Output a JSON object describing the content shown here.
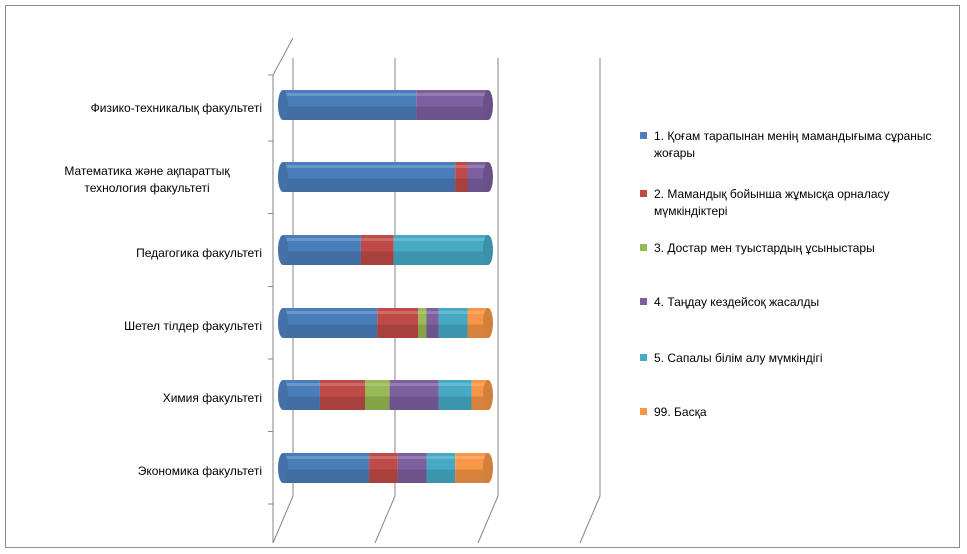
{
  "chart_data": {
    "type": "bar",
    "orientation": "horizontal",
    "stacked": "100%",
    "three_d": true,
    "categories": [
      "Физико-техникалық факультеті",
      "Математика және ақпараттық технология факультеті",
      "Педагогика факультеті",
      "Шетел тілдер факультеті",
      "Химия факультеті",
      "Экономика факультеті"
    ],
    "series": [
      {
        "name": "1. Қоғам тарапынан менің мамандығыма сұраныс жоғары",
        "color": "#4a7ebb",
        "values": [
          65,
          84,
          38,
          46,
          18,
          42
        ]
      },
      {
        "name": "2. Мамандық бойынша жұмысқа орналасу мүмкіндіктері",
        "color": "#be4b48",
        "values": [
          0,
          6,
          16,
          20,
          22,
          14
        ]
      },
      {
        "name": "3. Достар мен туыстардың ұсыныстары",
        "color": "#98b954",
        "values": [
          0,
          0,
          0,
          4,
          12,
          0
        ]
      },
      {
        "name": "4. Таңдау кездейсоқ жасалды",
        "color": "#7d60a0",
        "values": [
          35,
          10,
          0,
          6,
          24,
          14
        ]
      },
      {
        "name": "5. Сапалы білім алу мүмкіндігі",
        "color": "#46aac5",
        "values": [
          0,
          0,
          46,
          14,
          16,
          14
        ]
      },
      {
        "name": "99. Басқа",
        "color": "#f79646",
        "values": [
          0,
          0,
          0,
          10,
          8,
          16
        ]
      }
    ],
    "xlim": [
      0,
      100
    ],
    "gridlines": 3,
    "legend_position": "right"
  }
}
